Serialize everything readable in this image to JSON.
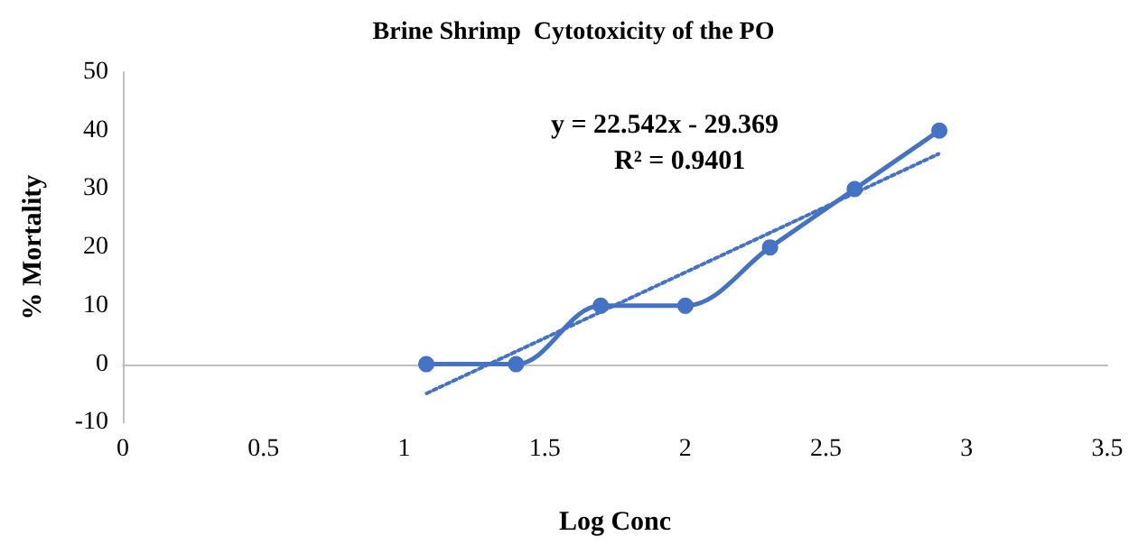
{
  "chart_data": {
    "type": "line",
    "title": "Brine Shrimp  Cytotoxicity of the PO",
    "xlabel": "Log Conc",
    "ylabel": "% Mortality",
    "x": [
      1.079,
      1.398,
      1.699,
      2.0,
      2.301,
      2.602,
      2.903
    ],
    "series": [
      {
        "color": "#4472c4",
        "values": [
          0,
          0,
          10,
          10,
          20,
          30,
          40
        ],
        "marker": "circle",
        "line_style": "solid"
      },
      {
        "color": "#4472c4",
        "x": [
          1.08,
          2.9
        ],
        "values": [
          -5,
          36
        ],
        "marker": "none",
        "line_style": "dotted"
      }
    ],
    "xlim": [
      0,
      3.5
    ],
    "xticks": [
      0,
      0.5,
      1,
      1.5,
      2,
      2.5,
      3,
      3.5
    ],
    "ylim": [
      -10,
      50
    ],
    "yticks": [
      -10,
      0,
      10,
      20,
      30,
      40,
      50
    ],
    "annotations": [
      "y = 22.542x - 29.369",
      "R² = 0.9401"
    ]
  }
}
